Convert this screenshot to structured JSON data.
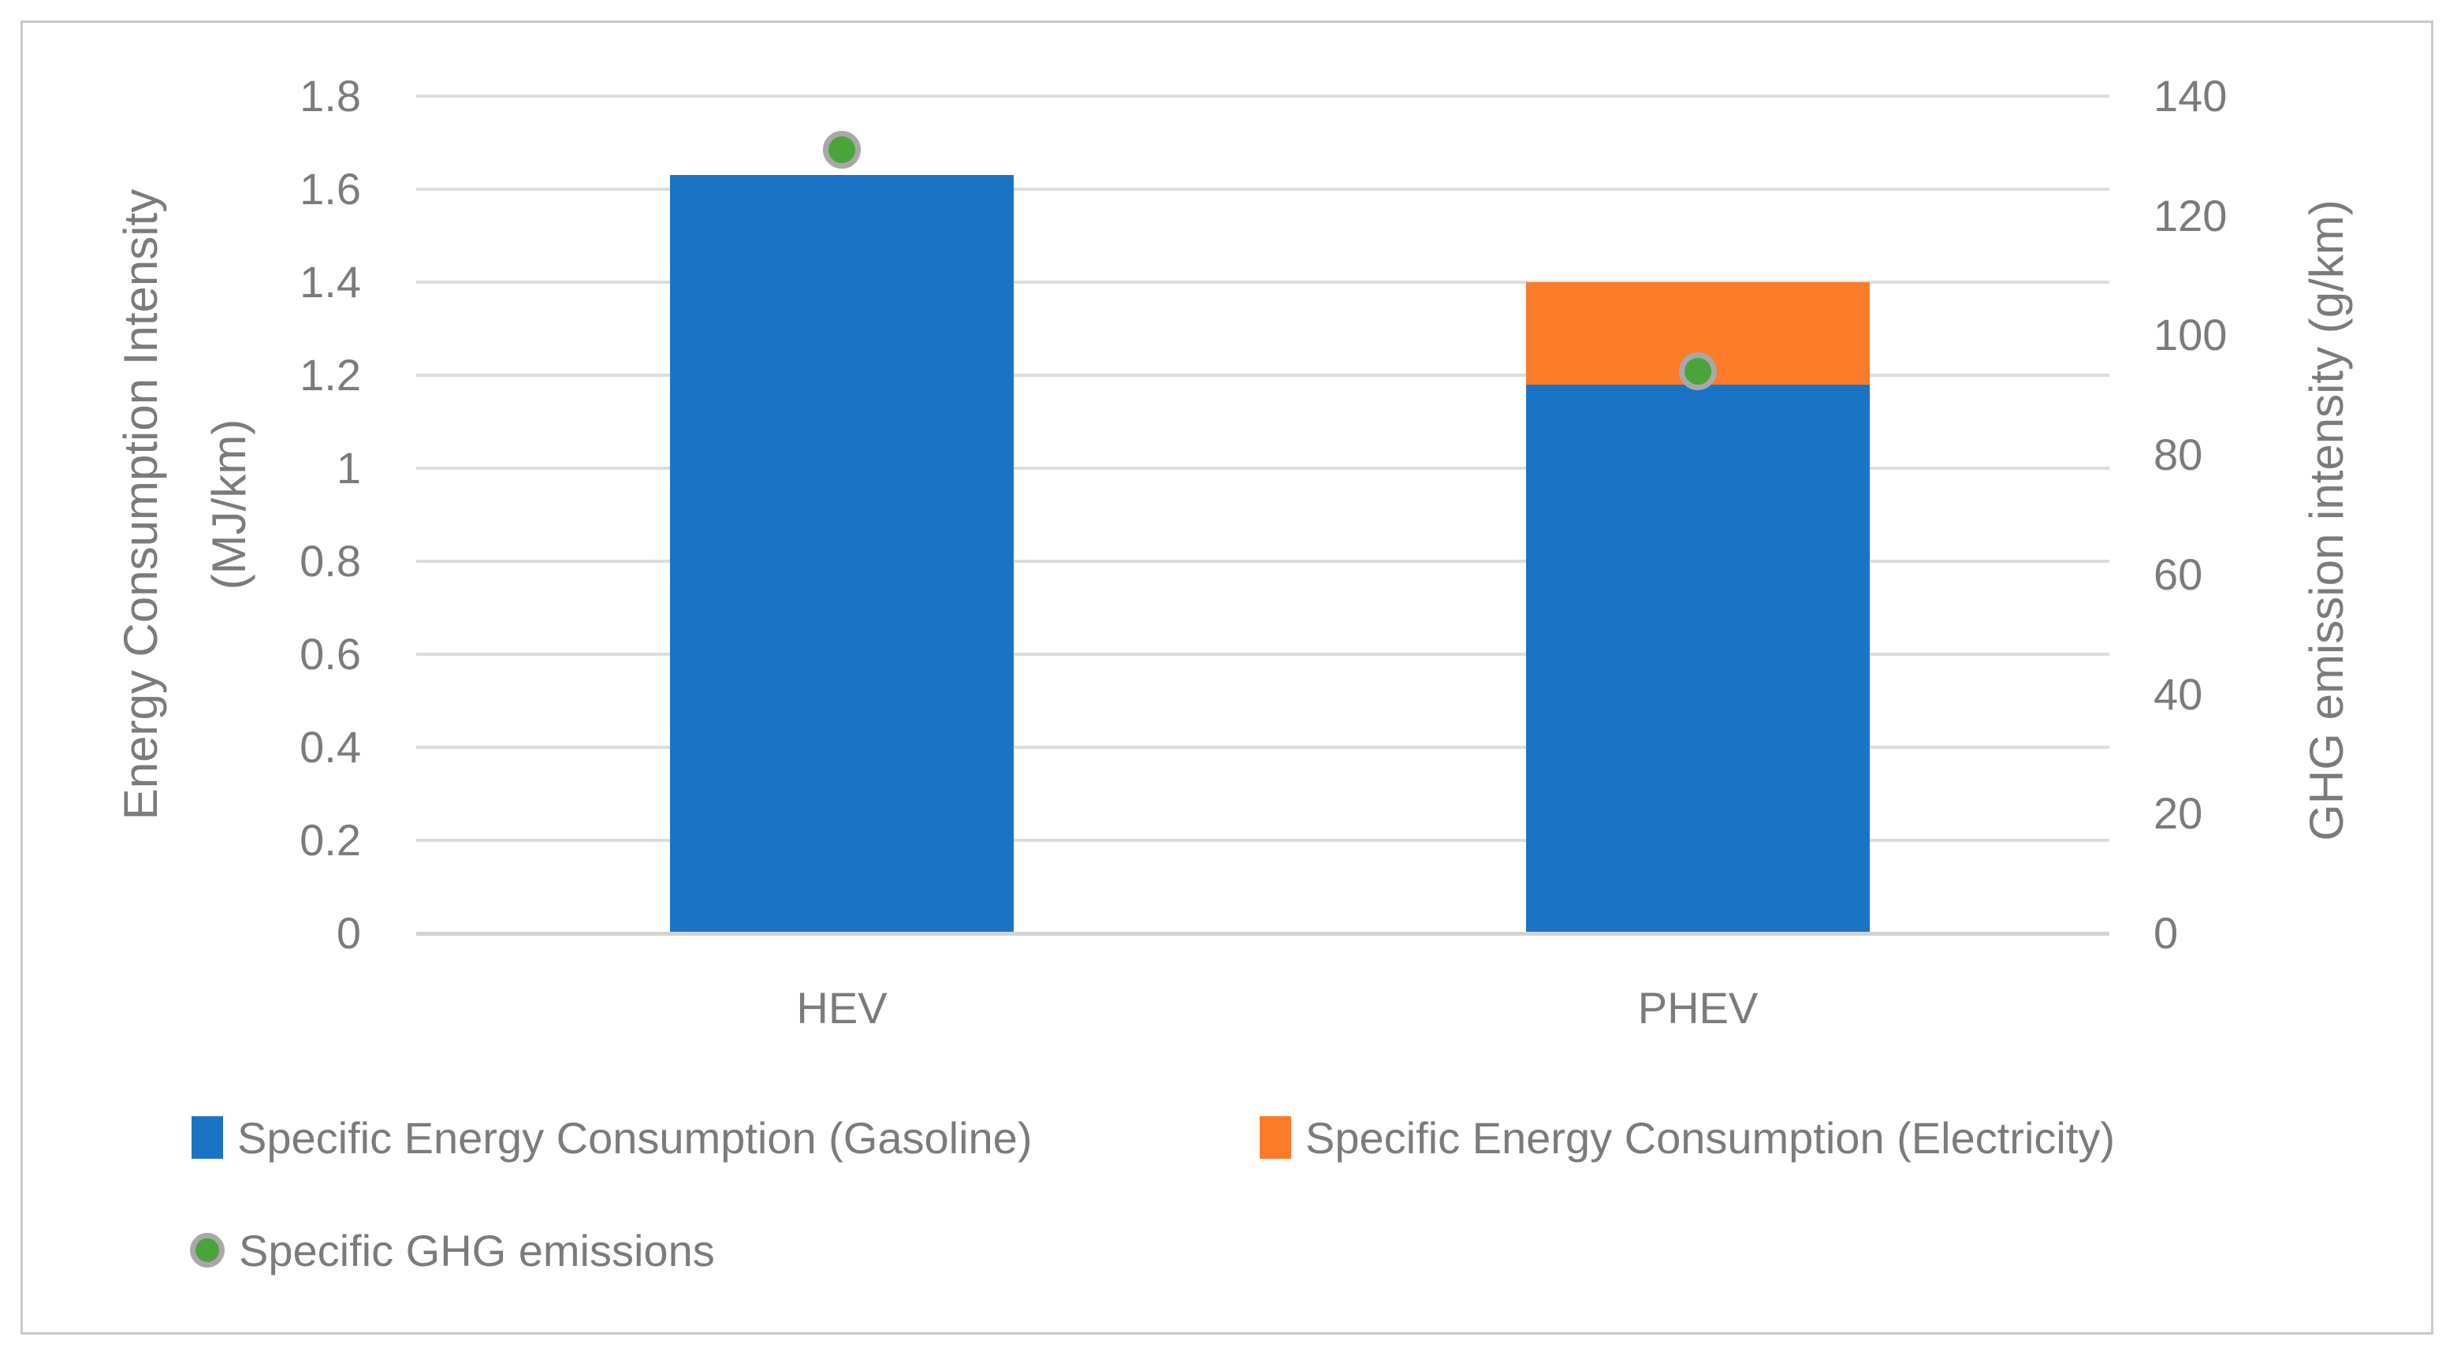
{
  "chart_data": {
    "type": "bar",
    "subtype": "stacked-columns-with-secondary-axis-scatter",
    "categories": [
      "HEV",
      "PHEV"
    ],
    "series": [
      {
        "name": "Specific Energy Consumption (Gasoline)",
        "type": "column",
        "axis": "left",
        "color": "#1b73c6",
        "values": [
          1.63,
          1.18
        ]
      },
      {
        "name": "Specific Energy Consumption (Electricity)",
        "type": "column",
        "axis": "left",
        "color": "#fb7b28",
        "values": [
          0,
          0.22
        ]
      },
      {
        "name": "Specific GHG emissions",
        "type": "scatter",
        "axis": "right",
        "color": "#4ba43a",
        "ring_color": "#a8a8a8",
        "values": [
          131,
          94
        ]
      }
    ],
    "left_axis": {
      "title": [
        "Energy Consumption Intensity",
        "(MJ/km)"
      ],
      "min": 0,
      "max": 1.8,
      "step": 0.2,
      "tick_labels": [
        "1.8",
        "1.6",
        "1.4",
        "1.2",
        "1",
        "0.8",
        "0.6",
        "0.4",
        "0.2",
        "0"
      ]
    },
    "right_axis": {
      "title": "GHG emission intensity (g/km)",
      "min": 0,
      "max": 140,
      "step": 20,
      "tick_labels": [
        "140",
        "120",
        "100",
        "80",
        "60",
        "40",
        "20",
        "0"
      ]
    },
    "grid": true,
    "legend_position": "bottom-left-two-rows"
  },
  "colors": {
    "gridline": "#dcdcdc",
    "axis_line": "#d2d2d2",
    "text": "#7b7b7b",
    "frame_border": "#c9c9c9",
    "background": "#ffffff"
  }
}
